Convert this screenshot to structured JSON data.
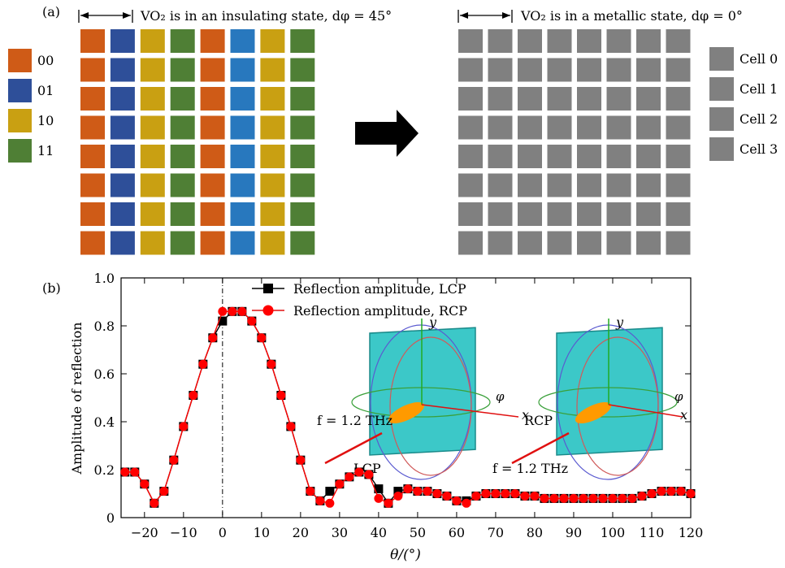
{
  "panel_a": {
    "label": "(a)",
    "left_caption": "VO₂ is in an insulating state, dφ = 45°",
    "right_caption": "VO₂ is in a metallic state, dφ = 0°",
    "left_legend": [
      {
        "code": "00",
        "color": "#cf5b17"
      },
      {
        "code": "01",
        "color": "#2e4f99"
      },
      {
        "code": "10",
        "color": "#c9a012"
      },
      {
        "code": "11",
        "color": "#4f7f35"
      }
    ],
    "right_legend": [
      {
        "label": "Cell 0"
      },
      {
        "label": "Cell 1"
      },
      {
        "label": "Cell 2"
      },
      {
        "label": "Cell 3"
      }
    ],
    "column_colors": [
      "#cf5b17",
      "#2e4f99",
      "#c9a012",
      "#4f7f35",
      "#cf5b17",
      "#2878be",
      "#c9a012",
      "#4f7f35"
    ],
    "metal_color": "#808080",
    "arrow_color": "#000000",
    "grid_size": 8
  },
  "panel_b": {
    "label": "(b)",
    "chart_data": {
      "type": "scatter",
      "ylabel": "Amplitude of reflection",
      "xlabel": "θ/(°)",
      "xlim": [
        -26,
        120
      ],
      "ylim": [
        0,
        1.0
      ],
      "xticks": [
        -20,
        -10,
        0,
        10,
        20,
        30,
        40,
        50,
        60,
        70,
        80,
        90,
        100,
        110,
        120
      ],
      "yticks": [
        0,
        0.2,
        0.4,
        0.6,
        0.8,
        1.0
      ],
      "ytick_labels": [
        "0",
        "0.2",
        "0.4",
        "0.6",
        "0.8",
        "1.0"
      ],
      "legend_position": "top-center",
      "series": [
        {
          "name": "Reflection amplitude, LCP",
          "color": "#000000",
          "marker": "square",
          "x": [
            -25,
            -22.5,
            -20,
            -17.5,
            -15,
            -12.5,
            -10,
            -7.5,
            -5,
            -2.5,
            0,
            2.5,
            5,
            7.5,
            10,
            12.5,
            15,
            17.5,
            20,
            22.5,
            25,
            27.5,
            30,
            32.5,
            35,
            37.5,
            40,
            42.5,
            45,
            47.5,
            50,
            52.5,
            55,
            57.5,
            60,
            62.5,
            65,
            67.5,
            70,
            72.5,
            75,
            77.5,
            80,
            82.5,
            85,
            87.5,
            90,
            92.5,
            95,
            97.5,
            100,
            102.5,
            105,
            107.5,
            110,
            112.5,
            115,
            117.5,
            120
          ],
          "values": [
            0.19,
            0.19,
            0.14,
            0.06,
            0.11,
            0.24,
            0.38,
            0.51,
            0.64,
            0.75,
            0.82,
            0.86,
            0.86,
            0.82,
            0.75,
            0.64,
            0.51,
            0.38,
            0.24,
            0.11,
            0.07,
            0.11,
            0.14,
            0.17,
            0.19,
            0.18,
            0.12,
            0.06,
            0.11,
            0.12,
            0.11,
            0.11,
            0.1,
            0.09,
            0.07,
            0.07,
            0.09,
            0.1,
            0.1,
            0.1,
            0.1,
            0.09,
            0.09,
            0.08,
            0.08,
            0.08,
            0.08,
            0.08,
            0.08,
            0.08,
            0.08,
            0.08,
            0.08,
            0.09,
            0.1,
            0.11,
            0.11,
            0.11,
            0.1
          ]
        },
        {
          "name": "Reflection amplitude, RCP",
          "color": "#ff0000",
          "marker": "circle",
          "x": [
            -25,
            -22.5,
            -20,
            -17.5,
            -15,
            -12.5,
            -10,
            -7.5,
            -5,
            -2.5,
            0,
            2.5,
            5,
            7.5,
            10,
            12.5,
            15,
            17.5,
            20,
            22.5,
            25,
            27.5,
            30,
            32.5,
            35,
            37.5,
            40,
            42.5,
            45,
            47.5,
            50,
            52.5,
            55,
            57.5,
            60,
            62.5,
            65,
            67.5,
            70,
            72.5,
            75,
            77.5,
            80,
            82.5,
            85,
            87.5,
            90,
            92.5,
            95,
            97.5,
            100,
            102.5,
            105,
            107.5,
            110,
            112.5,
            115,
            117.5,
            120
          ],
          "values": [
            0.19,
            0.19,
            0.14,
            0.06,
            0.11,
            0.24,
            0.38,
            0.51,
            0.64,
            0.75,
            0.86,
            0.86,
            0.86,
            0.82,
            0.75,
            0.64,
            0.51,
            0.38,
            0.24,
            0.11,
            0.07,
            0.06,
            0.14,
            0.17,
            0.19,
            0.18,
            0.08,
            0.06,
            0.09,
            0.12,
            0.11,
            0.11,
            0.1,
            0.09,
            0.07,
            0.06,
            0.09,
            0.1,
            0.1,
            0.1,
            0.1,
            0.09,
            0.09,
            0.08,
            0.08,
            0.08,
            0.08,
            0.08,
            0.08,
            0.08,
            0.08,
            0.08,
            0.08,
            0.09,
            0.1,
            0.11,
            0.11,
            0.11,
            0.1
          ]
        }
      ],
      "reference_line_x": 0
    },
    "inset_left": {
      "frequency_label": "f = 1.2 THz",
      "polarization_label": "LCP",
      "axis_y": "y",
      "axis_x": "x",
      "axis_phi": "φ"
    },
    "inset_right": {
      "frequency_label": "f = 1.2 THz",
      "polarization_label": "RCP",
      "axis_y": "y",
      "axis_x": "x",
      "axis_phi": "φ"
    },
    "surface_color": "#3cc8c8"
  }
}
